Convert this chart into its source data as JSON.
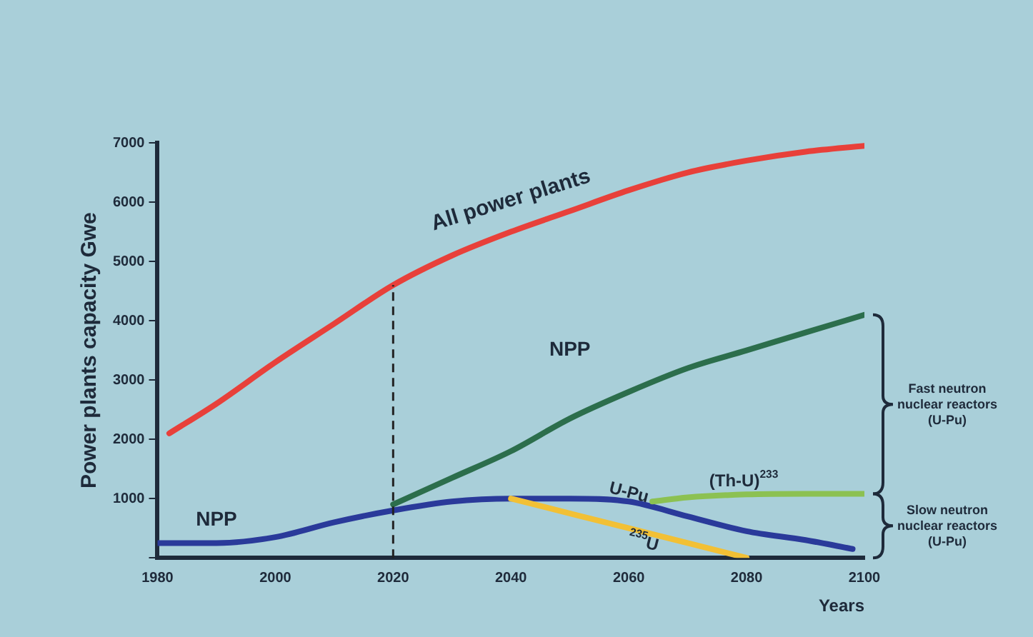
{
  "chart_data": {
    "type": "line",
    "ylabel": "Power plants capacity Gwe",
    "xlabel": "Years",
    "xlim": [
      1980,
      2100
    ],
    "xticks": [
      1980,
      2000,
      2020,
      2040,
      2060,
      2080,
      2100
    ],
    "ylim": [
      0,
      7000
    ],
    "yticks": [
      {
        "value": 0,
        "label": null
      },
      1000,
      2000,
      3000,
      4000,
      5000,
      6000,
      7000
    ],
    "grid": false,
    "legend": false,
    "marker": "none",
    "line_style": "solid",
    "series": [
      {
        "name": "All power plants",
        "color": "#e8403a",
        "x": [
          1982,
          1990,
          2000,
          2010,
          2020,
          2030,
          2040,
          2050,
          2060,
          2070,
          2080,
          2090,
          2100
        ],
        "values": [
          2100,
          2600,
          3300,
          3950,
          4600,
          5100,
          5500,
          5850,
          6200,
          6500,
          6700,
          6850,
          6950
        ]
      },
      {
        "name": "NPP",
        "color": "#2c6e4c",
        "x": [
          2020,
          2030,
          2040,
          2050,
          2060,
          2070,
          2080,
          2090,
          2100
        ],
        "values": [
          900,
          1350,
          1800,
          2350,
          2800,
          3200,
          3500,
          3800,
          4100
        ]
      },
      {
        "name": "(Th-U)$^{233}$",
        "color": "#8cc152",
        "x": [
          2064,
          2070,
          2080,
          2090,
          2100
        ],
        "values": [
          950,
          1020,
          1070,
          1080,
          1080
        ]
      },
      {
        "name": "$^{235}$U",
        "color": "#f2c035",
        "x": [
          2040,
          2060,
          2080
        ],
        "values": [
          1000,
          500,
          0
        ]
      },
      {
        "name": "U-Pu",
        "color": "#2a3a9a",
        "x": [
          1980,
          1990,
          2000,
          2010,
          2020,
          2030,
          2040,
          2050,
          2060,
          2070,
          2080,
          2090,
          2098
        ],
        "values": [
          250,
          250,
          350,
          600,
          800,
          950,
          1000,
          1000,
          950,
          700,
          450,
          300,
          150
        ]
      }
    ],
    "ref_lines": [
      {
        "axis": "x",
        "value": 2020,
        "color": "#222222",
        "line_style": "dashed"
      }
    ],
    "annotations": [
      "NPP",
      "Fast neutron\nnuclear reactors\n(U-Pu)",
      "Slow neutron\nnuclear reactors\n(U-Pu)"
    ]
  }
}
